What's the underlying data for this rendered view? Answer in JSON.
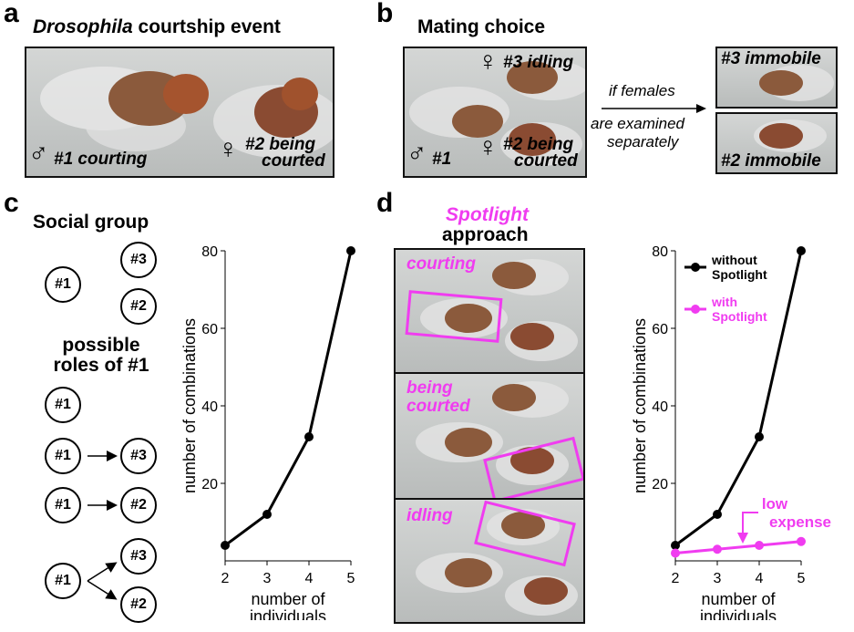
{
  "panel_a": {
    "letter": "a",
    "title_italic": "Drosophila",
    "title_rest": " courtship event",
    "male_symbol": "♂",
    "male_label": "#1 courting",
    "female_symbol": "♀",
    "female_label_line1": "#2 being",
    "female_label_line2": "courted"
  },
  "panel_b": {
    "letter": "b",
    "title": "Mating choice",
    "female3_label": "#3 idling",
    "male_label": "#1",
    "female2_line1": "#2 being",
    "female2_line2": "courted",
    "arrow_text_top": "if females",
    "arrow_text_mid": "are examined",
    "arrow_text_bot": "separately",
    "right_top_label": "#3 immobile",
    "right_bottom_label": "#2 immobile"
  },
  "panel_c": {
    "letter": "c",
    "group_title": "Social group",
    "roles_title_line1": "possible",
    "roles_title_line2": "roles of #1",
    "id1": "#1",
    "id2": "#2",
    "id3": "#3"
  },
  "panel_d": {
    "letter": "d",
    "title_line1": "Spotlight",
    "title_line2": "approach",
    "frame1_label": "courting",
    "frame2_label_line1": "being",
    "frame2_label_line2": "courted",
    "frame3_label": "idling",
    "low_expense_line1": "low",
    "low_expense_line2": "expense"
  },
  "colors": {
    "magenta": "#f03cf0",
    "black": "#000000"
  },
  "chart_data": [
    {
      "type": "line",
      "title": "",
      "xlabel": "number of individuals",
      "ylabel": "number of combinations",
      "x": [
        2,
        3,
        4,
        5
      ],
      "xticks": [
        "2",
        "3",
        "4",
        "5"
      ],
      "yticks": [
        "20",
        "40",
        "60",
        "80"
      ],
      "xlim": [
        2,
        5
      ],
      "ylim": [
        0,
        80
      ],
      "series": [
        {
          "values": [
            4,
            12,
            32,
            80
          ],
          "color": "#000000"
        }
      ]
    },
    {
      "type": "line",
      "title": "",
      "xlabel": "number of individuals",
      "ylabel": "number of combinations",
      "x": [
        2,
        3,
        4,
        5
      ],
      "xticks": [
        "2",
        "3",
        "4",
        "5"
      ],
      "yticks": [
        "20",
        "40",
        "60",
        "80"
      ],
      "xlim": [
        2,
        5
      ],
      "ylim": [
        0,
        80
      ],
      "series": [
        {
          "name_line1": "without",
          "name_line2": "Spotlight",
          "values": [
            4,
            12,
            32,
            80
          ],
          "color": "#000000"
        },
        {
          "name_line1": "with",
          "name_line2": "Spotlight",
          "values": [
            2,
            3,
            4,
            5
          ],
          "color": "#f03cf0"
        }
      ]
    }
  ]
}
